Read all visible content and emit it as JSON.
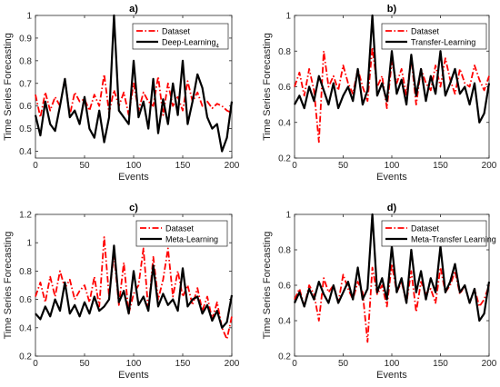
{
  "chart_data": [
    {
      "type": "line",
      "title": "a)",
      "xlabel": "Events",
      "ylabel": "Time Series Forecasting",
      "xlim": [
        0,
        200
      ],
      "ylim": [
        0.37,
        1.0
      ],
      "xticks": [
        "0",
        "50",
        "100",
        "150",
        "200"
      ],
      "yticks": [
        "0.4",
        "0.5",
        "0.6",
        "0.7",
        "0.8",
        "0.9",
        "1"
      ],
      "legend_position": "top-right",
      "series": [
        {
          "name": "Dataset",
          "color": "#ff0000",
          "style": "dashdot",
          "x": [
            0,
            5,
            10,
            15,
            20,
            25,
            30,
            35,
            40,
            45,
            50,
            55,
            60,
            65,
            70,
            75,
            80,
            85,
            90,
            95,
            100,
            105,
            110,
            115,
            120,
            125,
            130,
            135,
            140,
            145,
            150,
            155,
            160,
            165,
            170,
            175,
            180,
            185,
            190,
            195,
            200
          ],
          "y": [
            0.65,
            0.55,
            0.66,
            0.58,
            0.64,
            0.6,
            0.72,
            0.56,
            0.66,
            0.62,
            0.63,
            0.58,
            0.65,
            0.6,
            0.74,
            0.57,
            0.67,
            0.6,
            0.66,
            0.56,
            0.7,
            0.58,
            0.66,
            0.62,
            0.6,
            0.73,
            0.56,
            0.7,
            0.6,
            0.64,
            0.58,
            0.71,
            0.62,
            0.66,
            0.6,
            0.62,
            0.59,
            0.61,
            0.6,
            0.58,
            0.57
          ]
        },
        {
          "name": "Deep-Learning",
          "name_subscript": "4",
          "color": "#000000",
          "style": "solid",
          "x": [
            0,
            5,
            10,
            15,
            20,
            25,
            30,
            35,
            40,
            45,
            50,
            55,
            60,
            65,
            70,
            75,
            80,
            85,
            90,
            95,
            100,
            105,
            110,
            115,
            120,
            125,
            130,
            135,
            140,
            145,
            150,
            155,
            160,
            165,
            170,
            175,
            180,
            185,
            190,
            195,
            200
          ],
          "y": [
            0.56,
            0.47,
            0.62,
            0.52,
            0.49,
            0.6,
            0.72,
            0.55,
            0.58,
            0.52,
            0.64,
            0.5,
            0.46,
            0.58,
            0.44,
            0.55,
            1.0,
            0.58,
            0.55,
            0.52,
            0.8,
            0.55,
            0.62,
            0.5,
            0.72,
            0.48,
            0.63,
            0.52,
            0.7,
            0.56,
            0.8,
            0.52,
            0.62,
            0.74,
            0.68,
            0.55,
            0.5,
            0.52,
            0.4,
            0.46,
            0.62
          ]
        }
      ]
    },
    {
      "type": "line",
      "title": "b)",
      "xlabel": "Events",
      "ylabel": "Time Series Forecasting",
      "xlim": [
        0,
        200
      ],
      "ylim": [
        0.2,
        1.0
      ],
      "xticks": [
        "0",
        "50",
        "100",
        "150",
        "200"
      ],
      "yticks": [
        "0.2",
        "0.4",
        "0.6",
        "0.8",
        "1"
      ],
      "legend_position": "top-right",
      "series": [
        {
          "name": "Dataset",
          "color": "#ff0000",
          "style": "dashdot",
          "x": [
            0,
            5,
            10,
            15,
            20,
            25,
            30,
            35,
            40,
            45,
            50,
            55,
            60,
            65,
            70,
            75,
            80,
            85,
            90,
            95,
            100,
            105,
            110,
            115,
            120,
            125,
            130,
            135,
            140,
            145,
            150,
            155,
            160,
            165,
            170,
            175,
            180,
            185,
            190,
            195,
            200
          ],
          "y": [
            0.6,
            0.68,
            0.55,
            0.7,
            0.58,
            0.29,
            0.8,
            0.6,
            0.66,
            0.58,
            0.72,
            0.62,
            0.56,
            0.7,
            0.6,
            0.52,
            0.82,
            0.6,
            0.66,
            0.48,
            0.74,
            0.62,
            0.7,
            0.55,
            0.76,
            0.5,
            0.7,
            0.62,
            0.58,
            0.72,
            0.6,
            0.76,
            0.64,
            0.56,
            0.7,
            0.62,
            0.6,
            0.72,
            0.64,
            0.58,
            0.66
          ]
        },
        {
          "name": "Transfer-Learning",
          "color": "#000000",
          "style": "solid",
          "x": [
            0,
            5,
            10,
            15,
            20,
            25,
            30,
            35,
            40,
            45,
            50,
            55,
            60,
            65,
            70,
            75,
            80,
            85,
            90,
            95,
            100,
            105,
            110,
            115,
            120,
            125,
            130,
            135,
            140,
            145,
            150,
            155,
            160,
            165,
            170,
            175,
            180,
            185,
            190,
            195,
            200
          ],
          "y": [
            0.5,
            0.55,
            0.48,
            0.6,
            0.52,
            0.66,
            0.58,
            0.5,
            0.62,
            0.48,
            0.55,
            0.6,
            0.52,
            0.7,
            0.5,
            0.58,
            1.0,
            0.55,
            0.62,
            0.52,
            0.8,
            0.56,
            0.64,
            0.5,
            0.78,
            0.55,
            0.7,
            0.52,
            0.66,
            0.56,
            0.8,
            0.55,
            0.62,
            0.7,
            0.56,
            0.6,
            0.5,
            0.62,
            0.4,
            0.45,
            0.62
          ]
        }
      ]
    },
    {
      "type": "line",
      "title": "c)",
      "xlabel": "Events",
      "ylabel": "Time Series Forecasting",
      "xlim": [
        0,
        200
      ],
      "ylim": [
        0.2,
        1.2
      ],
      "xticks": [
        "0",
        "50",
        "100",
        "150",
        "200"
      ],
      "yticks": [
        "0.2",
        "0.4",
        "0.6",
        "0.8",
        "1",
        "1.2"
      ],
      "legend_position": "top-right",
      "series": [
        {
          "name": "Dataset",
          "color": "#ff0000",
          "style": "dashdot",
          "x": [
            0,
            5,
            10,
            15,
            20,
            25,
            30,
            35,
            40,
            45,
            50,
            55,
            60,
            65,
            70,
            75,
            80,
            85,
            90,
            95,
            100,
            105,
            110,
            115,
            120,
            125,
            130,
            135,
            140,
            145,
            150,
            155,
            160,
            165,
            170,
            175,
            180,
            185,
            190,
            195,
            200
          ],
          "y": [
            0.62,
            0.72,
            0.58,
            0.76,
            0.62,
            0.8,
            0.68,
            0.74,
            0.6,
            0.66,
            0.7,
            0.58,
            0.76,
            0.55,
            1.04,
            0.62,
            0.92,
            0.56,
            0.86,
            0.5,
            0.64,
            0.7,
            0.96,
            0.52,
            0.9,
            0.6,
            0.74,
            0.96,
            0.62,
            0.8,
            0.62,
            0.7,
            0.56,
            0.68,
            0.52,
            0.62,
            0.46,
            0.58,
            0.4,
            0.32,
            0.48
          ]
        },
        {
          "name": "Meta-Learning",
          "color": "#000000",
          "style": "solid",
          "x": [
            0,
            5,
            10,
            15,
            20,
            25,
            30,
            35,
            40,
            45,
            50,
            55,
            60,
            65,
            70,
            75,
            80,
            85,
            90,
            95,
            100,
            105,
            110,
            115,
            120,
            125,
            130,
            135,
            140,
            145,
            150,
            155,
            160,
            165,
            170,
            175,
            180,
            185,
            190,
            195,
            200
          ],
          "y": [
            0.5,
            0.46,
            0.55,
            0.48,
            0.6,
            0.52,
            0.72,
            0.5,
            0.56,
            0.48,
            0.58,
            0.5,
            0.62,
            0.52,
            0.55,
            0.6,
            0.98,
            0.58,
            0.66,
            0.5,
            0.8,
            0.56,
            0.62,
            0.52,
            0.84,
            0.55,
            0.64,
            0.56,
            0.6,
            0.52,
            0.82,
            0.55,
            0.6,
            0.62,
            0.5,
            0.56,
            0.45,
            0.52,
            0.4,
            0.44,
            0.63
          ]
        }
      ]
    },
    {
      "type": "line",
      "title": "d)",
      "xlabel": "Events",
      "ylabel": "Time Series Forecasting",
      "xlim": [
        0,
        200
      ],
      "ylim": [
        0.2,
        1.0
      ],
      "xticks": [
        "0",
        "50",
        "100",
        "150",
        "200"
      ],
      "yticks": [
        "0.2",
        "0.4",
        "0.6",
        "0.8",
        "1"
      ],
      "legend_position": "top-right",
      "series": [
        {
          "name": "Dataset",
          "color": "#ff0000",
          "style": "dashdot",
          "x": [
            0,
            5,
            10,
            15,
            20,
            25,
            30,
            35,
            40,
            45,
            50,
            55,
            60,
            65,
            70,
            75,
            80,
            85,
            90,
            95,
            100,
            105,
            110,
            115,
            120,
            125,
            130,
            135,
            140,
            145,
            150,
            155,
            160,
            165,
            170,
            175,
            180,
            185,
            190,
            195,
            200
          ],
          "y": [
            0.52,
            0.58,
            0.48,
            0.6,
            0.55,
            0.4,
            0.64,
            0.56,
            0.6,
            0.5,
            0.66,
            0.58,
            0.52,
            0.62,
            0.56,
            0.28,
            0.7,
            0.55,
            0.6,
            0.48,
            0.72,
            0.56,
            0.62,
            0.5,
            0.68,
            0.45,
            0.62,
            0.55,
            0.58,
            0.5,
            0.7,
            0.56,
            0.6,
            0.68,
            0.55,
            0.6,
            0.5,
            0.58,
            0.48,
            0.52,
            0.6
          ]
        },
        {
          "name": "Meta-Transfer Learning",
          "color": "#000000",
          "style": "solid",
          "x": [
            0,
            5,
            10,
            15,
            20,
            25,
            30,
            35,
            40,
            45,
            50,
            55,
            60,
            65,
            70,
            75,
            80,
            85,
            90,
            95,
            100,
            105,
            110,
            115,
            120,
            125,
            130,
            135,
            140,
            145,
            150,
            155,
            160,
            165,
            170,
            175,
            180,
            185,
            190,
            195,
            200
          ],
          "y": [
            0.5,
            0.56,
            0.48,
            0.58,
            0.52,
            0.62,
            0.55,
            0.5,
            0.6,
            0.5,
            0.56,
            0.62,
            0.52,
            0.7,
            0.52,
            0.58,
            1.0,
            0.56,
            0.64,
            0.52,
            0.82,
            0.56,
            0.64,
            0.5,
            0.8,
            0.56,
            0.68,
            0.52,
            0.64,
            0.56,
            0.82,
            0.56,
            0.62,
            0.72,
            0.56,
            0.6,
            0.5,
            0.58,
            0.4,
            0.44,
            0.62
          ]
        }
      ]
    }
  ]
}
